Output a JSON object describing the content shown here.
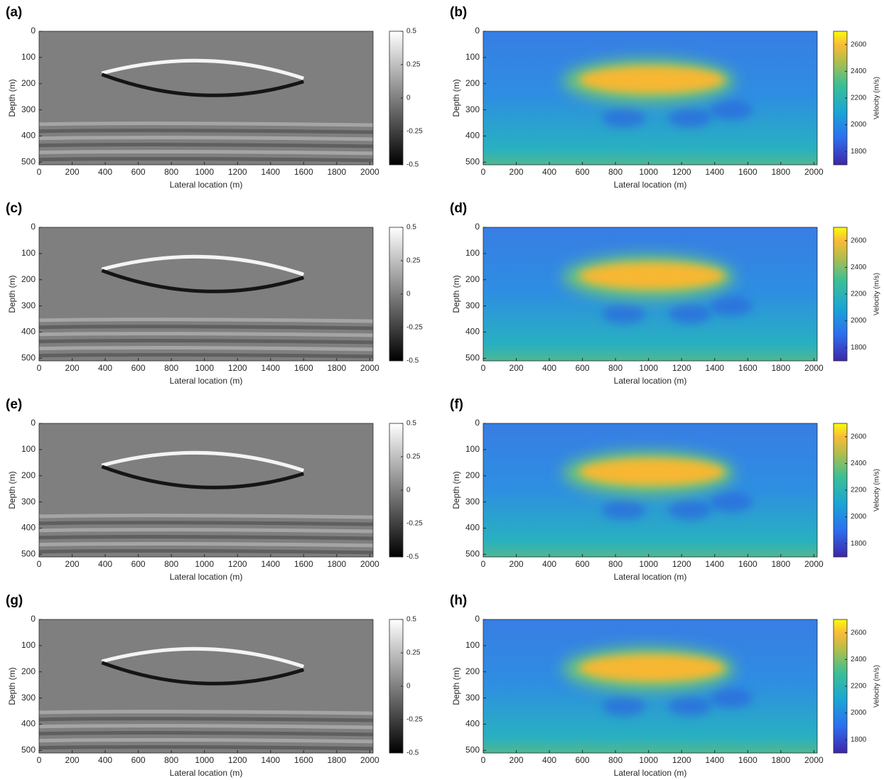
{
  "chart_data": [
    {
      "type": "heatmap",
      "panel_label": "(a)",
      "xlabel": "Lateral location (m)",
      "ylabel": "Depth (m)",
      "xlim": [
        0,
        2020
      ],
      "ylim": [
        0,
        510
      ],
      "y_reversed": true,
      "xticks": [
        0,
        200,
        400,
        600,
        800,
        1000,
        1200,
        1400,
        1600,
        1800,
        2000
      ],
      "yticks": [
        0,
        100,
        200,
        300,
        400,
        500
      ],
      "colormap": "gray",
      "clim": [
        -0.5,
        0.5
      ],
      "cticks": [
        0.5,
        0.25,
        0,
        -0.25,
        -0.5
      ]
    },
    {
      "type": "heatmap",
      "panel_label": "(b)",
      "xlabel": "Lateral location (m)",
      "ylabel": "Depth (m)",
      "xlim": [
        0,
        2020
      ],
      "ylim": [
        0,
        510
      ],
      "y_reversed": true,
      "xticks": [
        0,
        200,
        400,
        600,
        800,
        1000,
        1200,
        1400,
        1600,
        1800,
        2000
      ],
      "yticks": [
        0,
        100,
        200,
        300,
        400,
        500
      ],
      "colormap": "parula",
      "clim": [
        1700,
        2700
      ],
      "cticks": [
        2600,
        2400,
        2200,
        2000,
        1800
      ],
      "colorbar_label": "Velocity (m/s)"
    },
    {
      "type": "heatmap",
      "panel_label": "(c)",
      "xlabel": "Lateral location (m)",
      "ylabel": "Depth (m)",
      "xlim": [
        0,
        2020
      ],
      "ylim": [
        0,
        510
      ],
      "y_reversed": true,
      "xticks": [
        0,
        200,
        400,
        600,
        800,
        1000,
        1200,
        1400,
        1600,
        1800,
        2000
      ],
      "yticks": [
        0,
        100,
        200,
        300,
        400,
        500
      ],
      "colormap": "gray",
      "clim": [
        -0.5,
        0.5
      ],
      "cticks": [
        0.5,
        0.25,
        0,
        -0.25,
        -0.5
      ]
    },
    {
      "type": "heatmap",
      "panel_label": "(d)",
      "xlabel": "Lateral location (m)",
      "ylabel": "Depth (m)",
      "xlim": [
        0,
        2020
      ],
      "ylim": [
        0,
        510
      ],
      "y_reversed": true,
      "xticks": [
        0,
        200,
        400,
        600,
        800,
        1000,
        1200,
        1400,
        1600,
        1800,
        2000
      ],
      "yticks": [
        0,
        100,
        200,
        300,
        400,
        500
      ],
      "colormap": "parula",
      "clim": [
        1700,
        2700
      ],
      "cticks": [
        2600,
        2400,
        2200,
        2000,
        1800
      ],
      "colorbar_label": "Velocity (m/s)"
    },
    {
      "type": "heatmap",
      "panel_label": "(e)",
      "xlabel": "Lateral location (m)",
      "ylabel": "Depth (m)",
      "xlim": [
        0,
        2020
      ],
      "ylim": [
        0,
        510
      ],
      "y_reversed": true,
      "xticks": [
        0,
        200,
        400,
        600,
        800,
        1000,
        1200,
        1400,
        1600,
        1800,
        2000
      ],
      "yticks": [
        0,
        100,
        200,
        300,
        400,
        500
      ],
      "colormap": "gray",
      "clim": [
        -0.5,
        0.5
      ],
      "cticks": [
        0.5,
        0.25,
        0,
        -0.25,
        -0.5
      ]
    },
    {
      "type": "heatmap",
      "panel_label": "(f)",
      "xlabel": "Lateral location (m)",
      "ylabel": "Depth (m)",
      "xlim": [
        0,
        2020
      ],
      "ylim": [
        0,
        510
      ],
      "y_reversed": true,
      "xticks": [
        0,
        200,
        400,
        600,
        800,
        1000,
        1200,
        1400,
        1600,
        1800,
        2000
      ],
      "yticks": [
        0,
        100,
        200,
        300,
        400,
        500
      ],
      "colormap": "parula",
      "clim": [
        1700,
        2700
      ],
      "cticks": [
        2600,
        2400,
        2200,
        2000,
        1800
      ],
      "colorbar_label": "Velocity (m/s)"
    },
    {
      "type": "heatmap",
      "panel_label": "(g)",
      "xlabel": "Lateral location (m)",
      "ylabel": "Depth (m)",
      "xlim": [
        0,
        2020
      ],
      "ylim": [
        0,
        510
      ],
      "y_reversed": true,
      "xticks": [
        0,
        200,
        400,
        600,
        800,
        1000,
        1200,
        1400,
        1600,
        1800,
        2000
      ],
      "yticks": [
        0,
        100,
        200,
        300,
        400,
        500
      ],
      "colormap": "gray",
      "clim": [
        -0.5,
        0.5
      ],
      "cticks": [
        0.5,
        0.25,
        0,
        -0.25,
        -0.5
      ]
    },
    {
      "type": "heatmap",
      "panel_label": "(h)",
      "xlabel": "Lateral location (m)",
      "ylabel": "Depth (m)",
      "xlim": [
        0,
        2020
      ],
      "ylim": [
        0,
        510
      ],
      "y_reversed": true,
      "xticks": [
        0,
        200,
        400,
        600,
        800,
        1000,
        1200,
        1400,
        1600,
        1800,
        2000
      ],
      "yticks": [
        0,
        100,
        200,
        300,
        400,
        500
      ],
      "colormap": "parula",
      "clim": [
        1700,
        2700
      ],
      "cticks": [
        2600,
        2400,
        2200,
        2000,
        1800
      ],
      "colorbar_label": "Velocity (m/s)"
    }
  ]
}
